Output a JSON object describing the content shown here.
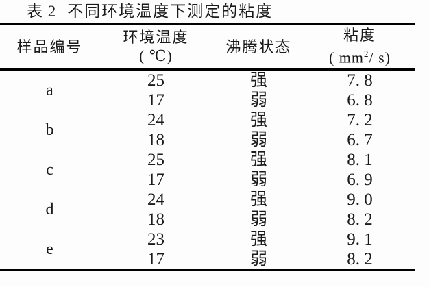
{
  "page": {
    "background": "#fdfdfd",
    "text_color": "#1a1a1a",
    "rule_color": "#000000"
  },
  "table": {
    "caption_number": "表 2",
    "caption_text": "不同环境温度下测定的粘度",
    "columns": [
      {
        "label": "样品编号"
      },
      {
        "label": "环境温度",
        "unit": "( ℃)"
      },
      {
        "label": "沸腾状态"
      },
      {
        "label": "粘度",
        "unit_pre": "( mm",
        "unit_sup": "2",
        "unit_post": "/ s)"
      }
    ],
    "groups": [
      {
        "sample": "a",
        "rows": [
          {
            "temp": "25",
            "boiling": "强",
            "viscosity": "7. 8"
          },
          {
            "temp": "17",
            "boiling": "弱",
            "viscosity": "6. 8"
          }
        ]
      },
      {
        "sample": "b",
        "rows": [
          {
            "temp": "24",
            "boiling": "强",
            "viscosity": "7. 2"
          },
          {
            "temp": "18",
            "boiling": "弱",
            "viscosity": "6. 7"
          }
        ]
      },
      {
        "sample": "c",
        "rows": [
          {
            "temp": "25",
            "boiling": "强",
            "viscosity": "8. 1"
          },
          {
            "temp": "17",
            "boiling": "弱",
            "viscosity": "6. 9"
          }
        ]
      },
      {
        "sample": "d",
        "rows": [
          {
            "temp": "24",
            "boiling": "强",
            "viscosity": "9. 0"
          },
          {
            "temp": "18",
            "boiling": "弱",
            "viscosity": "8. 2"
          }
        ]
      },
      {
        "sample": "e",
        "rows": [
          {
            "temp": "23",
            "boiling": "强",
            "viscosity": "9. 1"
          },
          {
            "temp": "17",
            "boiling": "弱",
            "viscosity": "8. 2"
          }
        ]
      }
    ]
  },
  "chart_data": {
    "type": "table",
    "title": "表 2 不同环境温度下测定的粘度",
    "columns": [
      "样品编号",
      "环境温度 (℃)",
      "沸腾状态",
      "粘度 (mm2/s)"
    ],
    "rows": [
      [
        "a",
        25,
        "强",
        7.8
      ],
      [
        "a",
        17,
        "弱",
        6.8
      ],
      [
        "b",
        24,
        "强",
        7.2
      ],
      [
        "b",
        18,
        "弱",
        6.7
      ],
      [
        "c",
        25,
        "强",
        8.1
      ],
      [
        "c",
        17,
        "弱",
        6.9
      ],
      [
        "d",
        24,
        "强",
        9.0
      ],
      [
        "d",
        18,
        "弱",
        8.2
      ],
      [
        "e",
        23,
        "强",
        9.1
      ],
      [
        "e",
        17,
        "弱",
        8.2
      ]
    ]
  }
}
